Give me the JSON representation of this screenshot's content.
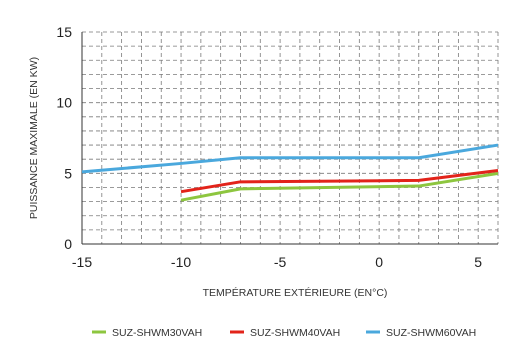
{
  "chart_data": {
    "type": "line",
    "title": "",
    "xlabel": "TEMPÉRATURE EXTÉRIEURE (EN°C)",
    "ylabel": "PUISSANCE MAXIMALE (EN KW)",
    "xlim": [
      -15,
      6
    ],
    "ylim": [
      0,
      15
    ],
    "x_ticks": [
      -15,
      -10,
      -5,
      0,
      5
    ],
    "y_ticks": [
      0,
      5,
      10,
      15
    ],
    "grid": "dashed",
    "legend_position": "bottom",
    "series": [
      {
        "name": "SUZ-SHWM30VAH",
        "color": "#8dc63f",
        "x": [
          -10,
          -7,
          2,
          6
        ],
        "y": [
          3.1,
          3.9,
          4.1,
          5.0
        ]
      },
      {
        "name": "SUZ-SHWM40VAH",
        "color": "#e2231a",
        "x": [
          -10,
          -7,
          2,
          6
        ],
        "y": [
          3.7,
          4.4,
          4.5,
          5.2
        ]
      },
      {
        "name": "SUZ-SHWM60VAH",
        "color": "#4aa8dd",
        "x": [
          -15,
          -10,
          -7,
          2,
          6
        ],
        "y": [
          5.1,
          5.7,
          6.1,
          6.1,
          7.0
        ]
      }
    ]
  }
}
